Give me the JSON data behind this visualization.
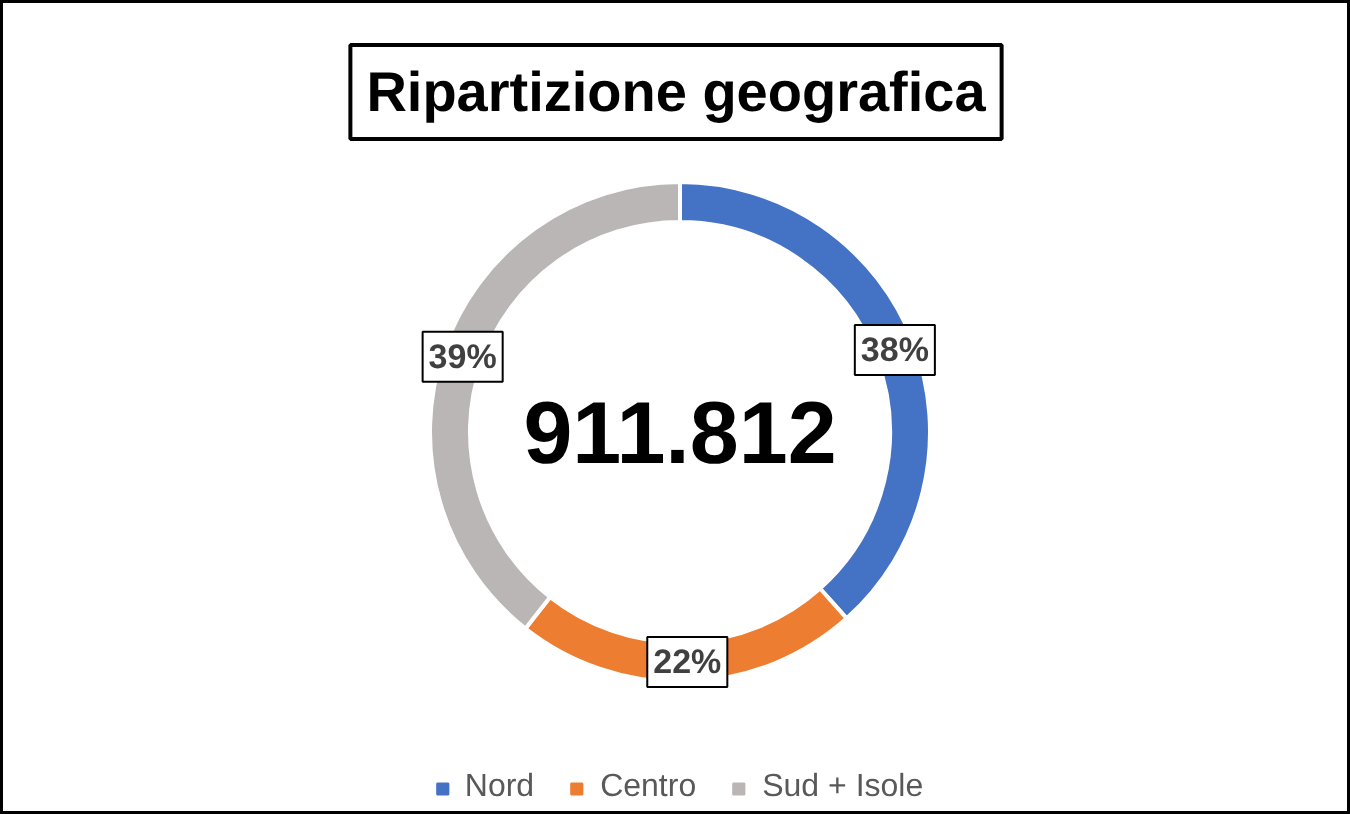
{
  "chart_data": {
    "type": "donut",
    "title": "Ripartizione geografica",
    "categories": [
      "Nord",
      "Centro",
      "Sud + Isole"
    ],
    "values": [
      38,
      22,
      39
    ],
    "colors": [
      "#4472c4",
      "#ed7d31",
      "#bab6b6"
    ],
    "value_labels": [
      "38%",
      "22%",
      "39%"
    ],
    "annotations": [
      "911.812"
    ],
    "legend": "bottom"
  }
}
